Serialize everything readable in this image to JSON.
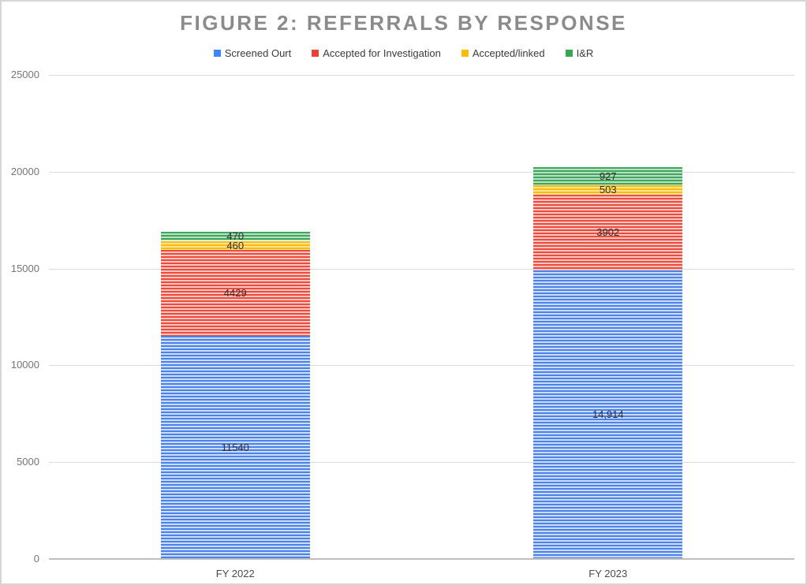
{
  "title": "FIGURE 2: REFERRALS BY RESPONSE",
  "chart_data": {
    "type": "bar",
    "stacked": true,
    "title": "FIGURE 2: REFERRALS BY RESPONSE",
    "categories": [
      "FY 2022",
      "FY 2023"
    ],
    "series": [
      {
        "name": "Screened Ourt",
        "values": [
          11540,
          14914
        ],
        "value_labels": [
          "11540",
          "14,914"
        ],
        "color": "#4a82e8",
        "color_light": "#ccdbf7",
        "legend_swatch": "#4285f4"
      },
      {
        "name": "Accepted for Investigation",
        "values": [
          4429,
          3902
        ],
        "value_labels": [
          "4429",
          "3902"
        ],
        "color": "#ee4a3b",
        "color_light": "#f9c6c1",
        "legend_swatch": "#ea4335"
      },
      {
        "name": "Accepted/linked",
        "values": [
          460,
          503
        ],
        "value_labels": [
          "460",
          "503"
        ],
        "color": "#fbbc04",
        "color_light": "#fbe39d",
        "legend_swatch": "#fbbc04"
      },
      {
        "name": "I&R",
        "values": [
          470,
          927
        ],
        "value_labels": [
          "470",
          "927"
        ],
        "color": "#3fa75c",
        "color_light": "#b9dfc4",
        "legend_swatch": "#34a853"
      }
    ],
    "totals": [
      16899,
      20246
    ],
    "y_ticks": [
      0,
      5000,
      10000,
      15000,
      20000,
      25000
    ],
    "y_tick_labels": [
      "0",
      "5000",
      "10000",
      "15000",
      "20000",
      "25000"
    ],
    "ylim": [
      0,
      25000
    ],
    "xlabel": "",
    "ylabel": "",
    "grid": true,
    "legend_position": "top",
    "grid_color": "#dcdcdc",
    "axis_color": "#bfbfbf",
    "title_color": "#8b8b8b"
  }
}
